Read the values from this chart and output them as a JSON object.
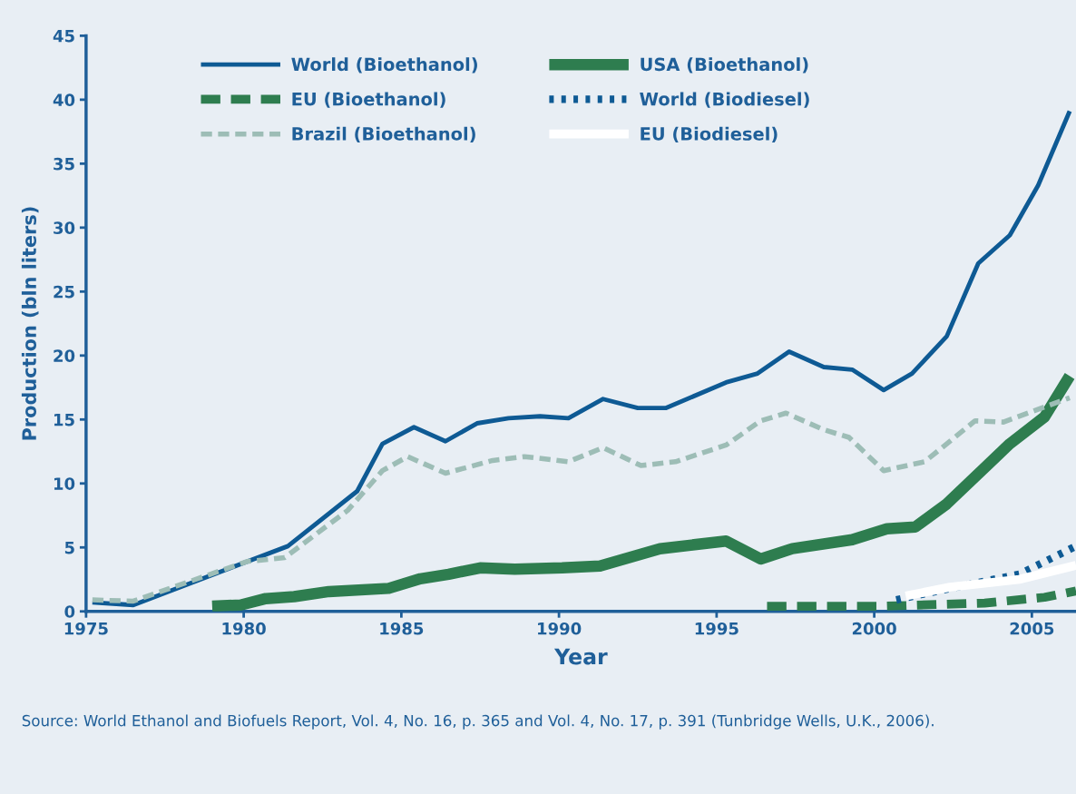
{
  "chart_data": {
    "type": "line",
    "xlabel": "Year",
    "ylabel": "Production (bln liters)",
    "xlim": [
      1975,
      2006.4
    ],
    "ylim": [
      0,
      45
    ],
    "xticks": [
      1975,
      1980,
      1985,
      1990,
      1995,
      2000,
      2005
    ],
    "yticks": [
      0,
      5,
      10,
      15,
      20,
      25,
      30,
      35,
      40,
      45
    ],
    "grid": false,
    "legend": "top left",
    "marker": "none",
    "series": [
      {
        "name": "World (Bioethanol)",
        "color": "#0e5a94",
        "line_style": "solid",
        "x": [
          1975.2,
          1976.5,
          1981.4,
          1983.6,
          1984.4,
          1985.4,
          1986.4,
          1987.4,
          1988.4,
          1989.4,
          1990.3,
          1991.4,
          1992.5,
          1993.4,
          1995.3,
          1996.3,
          1997.3,
          1998.4,
          1999.3,
          2000.3,
          2001.2,
          2002.3,
          2003.3,
          2004.3,
          2005.2,
          2006.2
        ],
        "values": [
          0.7,
          0.5,
          5.1,
          9.4,
          13.1,
          14.4,
          13.3,
          14.7,
          15.1,
          15.25,
          15.1,
          16.6,
          15.9,
          15.9,
          17.9,
          18.6,
          20.3,
          19.1,
          18.9,
          17.3,
          18.6,
          21.5,
          27.2,
          29.4,
          33.3,
          39.1
        ]
      },
      {
        "name": "USA (Bioethanol)",
        "color": "#2e7d4f",
        "line_style": "solid",
        "x": [
          1979.0,
          1979.9,
          1980.7,
          1981.6,
          1982.7,
          1984.6,
          1985.6,
          1986.5,
          1987.5,
          1988.6,
          1990.1,
          1991.3,
          1993.2,
          1995.3,
          1996.4,
          1997.4,
          1999.3,
          2000.4,
          2001.3,
          2002.3,
          2004.3,
          2005.4,
          2006.2
        ],
        "values": [
          0.4,
          0.5,
          1.0,
          1.15,
          1.55,
          1.8,
          2.55,
          2.9,
          3.4,
          3.3,
          3.4,
          3.55,
          4.9,
          5.5,
          4.1,
          4.9,
          5.6,
          6.45,
          6.6,
          8.4,
          13.1,
          15.2,
          18.4
        ]
      },
      {
        "name": "EU (Bioethanol)",
        "color": "#2e7d4f",
        "line_style": "dashed",
        "x": [
          1996.6,
          2000.2,
          2003.5,
          2005.4,
          2006.4
        ],
        "values": [
          0.4,
          0.4,
          0.65,
          1.1,
          1.6
        ]
      },
      {
        "name": "World (Biodiesel)",
        "color": "#0e5a94",
        "line_style": "dotted",
        "x": [
          2000.7,
          2002.4,
          2004.6,
          2006.4
        ],
        "values": [
          0.9,
          1.8,
          2.9,
          5.1
        ]
      },
      {
        "name": "Brazil (Bioethanol)",
        "color": "#9dbdb6",
        "line_style": "dashed",
        "x": [
          1975.2,
          1976.5,
          1980.1,
          1981.3,
          1983.3,
          1984.4,
          1985.2,
          1986.4,
          1987.9,
          1988.9,
          1990.3,
          1991.4,
          1992.6,
          1993.7,
          1995.3,
          1996.4,
          1997.2,
          1998.4,
          1999.2,
          2000.3,
          2001.6,
          2003.2,
          2004.1,
          2006.2
        ],
        "values": [
          0.9,
          0.8,
          3.9,
          4.2,
          7.9,
          11.0,
          12.1,
          10.8,
          11.8,
          12.1,
          11.7,
          12.8,
          11.4,
          11.7,
          13.0,
          14.9,
          15.5,
          14.2,
          13.6,
          11.0,
          11.7,
          14.9,
          14.8,
          16.7
        ]
      },
      {
        "name": "EU (Biodiesel)",
        "color": "#ffffff",
        "line_style": "solid",
        "x": [
          2001.0,
          2002.4,
          2004.6,
          2006.4
        ],
        "values": [
          1.2,
          1.9,
          2.5,
          3.6
        ]
      }
    ],
    "annotations": [
      "Source: World Ethanol and Biofuels Report, Vol. 4, No. 16, p. 365 and Vol. 4, No. 17, p. 391 (Tunbridge Wells, U.K., 2006)."
    ]
  }
}
